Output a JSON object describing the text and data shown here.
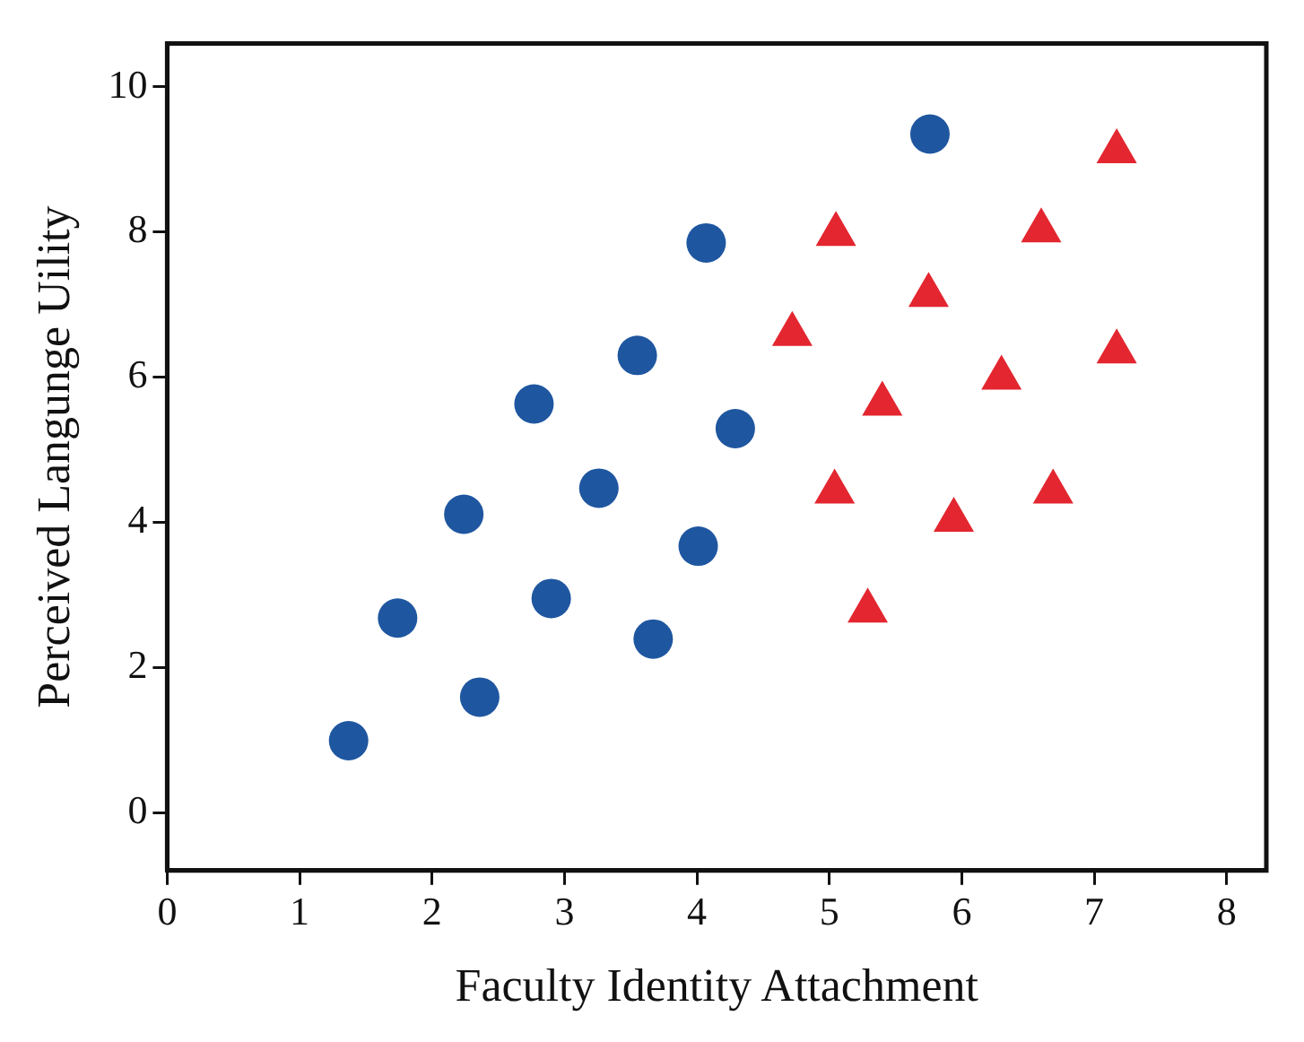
{
  "chart_data": {
    "type": "scatter",
    "xlabel": "Faculty Identity Attachment",
    "ylabel": "Perceived Langunge Uility",
    "xlim": [
      0,
      8.3
    ],
    "xticks": [
      0,
      1,
      2,
      3,
      4,
      5,
      6,
      7,
      8
    ],
    "ylim": [
      -0.8,
      10.6
    ],
    "yticks": [
      0,
      2,
      4,
      6,
      8,
      10
    ],
    "series": [
      {
        "color": "#1f56a0",
        "marker": "circle",
        "x": [
          1.37,
          1.74,
          2.24,
          2.36,
          2.77,
          2.9,
          3.26,
          3.55,
          3.67,
          4.01,
          4.07,
          4.29,
          5.76
        ],
        "values": [
          0.99,
          2.68,
          4.11,
          1.59,
          5.63,
          2.95,
          4.47,
          6.3,
          2.39,
          3.67,
          7.85,
          5.29,
          9.35
        ]
      },
      {
        "color": "#e3262f",
        "marker": "triangle",
        "x": [
          7.17,
          5.05,
          4.72,
          6.6,
          5.75,
          5.4,
          6.3,
          7.17,
          5.04,
          5.94,
          6.69,
          5.29
        ],
        "values": [
          9.11,
          7.97,
          6.59,
          8.02,
          7.13,
          5.63,
          5.99,
          6.35,
          4.42,
          4.03,
          4.42,
          2.78
        ]
      }
    ]
  }
}
